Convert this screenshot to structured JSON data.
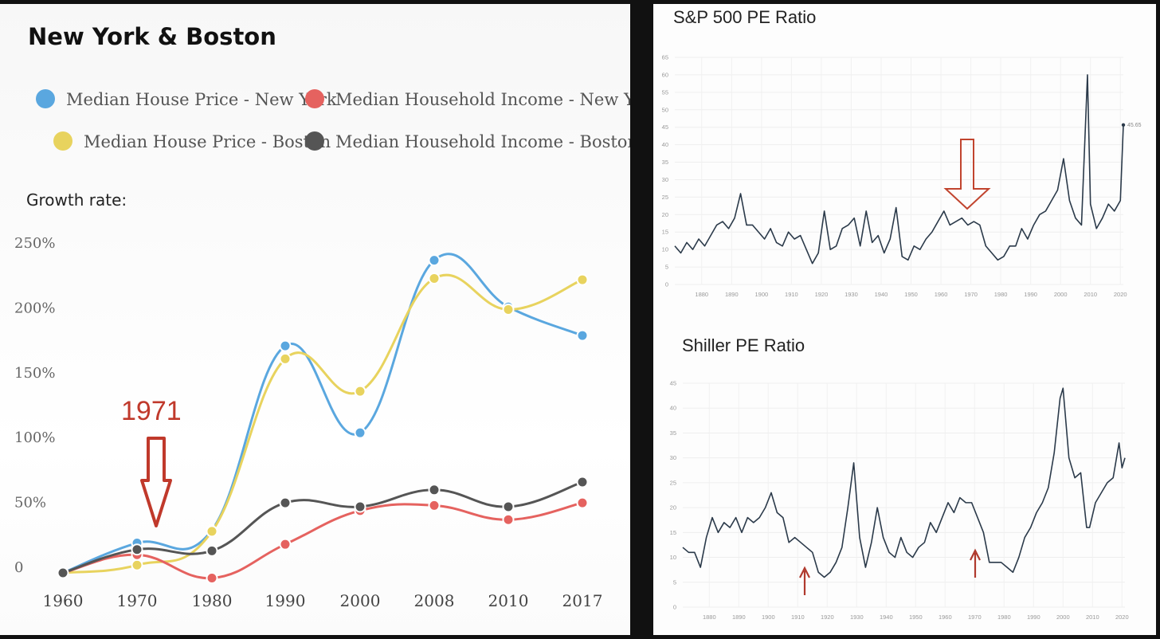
{
  "chart_data": [
    {
      "type": "line",
      "title": "New York & Boston",
      "ylabel": "Growth rate:",
      "categories": [
        "1960",
        "1970",
        "1980",
        "1990",
        "2000",
        "2008",
        "2010",
        "2017"
      ],
      "y_ticks": [
        "0",
        "50%",
        "100%",
        "150%",
        "200%",
        "250%"
      ],
      "ylim": [
        0,
        250
      ],
      "series": [
        {
          "name": "Median House Price - New York",
          "color": "#5aa7df",
          "values": [
            0,
            23,
            33,
            175,
            108,
            241,
            205,
            183
          ]
        },
        {
          "name": "Median Household Income - New York",
          "color": "#e5625f",
          "values": [
            0,
            14,
            -4,
            22,
            48,
            52,
            41,
            54
          ]
        },
        {
          "name": "Median House Price - Boston",
          "color": "#e8d35e",
          "values": [
            0,
            6,
            32,
            165,
            140,
            227,
            203,
            226
          ]
        },
        {
          "name": "Median Household Income - Boston",
          "color": "#555555",
          "values": [
            0,
            18,
            17,
            54,
            51,
            64,
            51,
            70
          ]
        }
      ],
      "annotation": {
        "label": "1971",
        "year": 1971
      }
    },
    {
      "type": "line",
      "title": "S&P 500 PE Ratio",
      "x_ticks": [
        "1880",
        "1890",
        "1900",
        "1910",
        "1920",
        "1930",
        "1940",
        "1950",
        "1960",
        "1970",
        "1980",
        "1990",
        "2000",
        "2010",
        "2020"
      ],
      "y_ticks": [
        "0",
        "5",
        "10",
        "15",
        "20",
        "25",
        "30",
        "35",
        "40",
        "45",
        "50",
        "55",
        "60",
        "65"
      ],
      "ylim": [
        0,
        65
      ],
      "xlim": [
        1871,
        2021
      ],
      "last_value_label": "45.65",
      "color": "#2b3a4a",
      "x": [
        1871,
        1873,
        1875,
        1877,
        1879,
        1881,
        1883,
        1885,
        1887,
        1889,
        1891,
        1893,
        1895,
        1897,
        1899,
        1901,
        1903,
        1905,
        1907,
        1909,
        1911,
        1913,
        1915,
        1917,
        1919,
        1921,
        1923,
        1925,
        1927,
        1929,
        1931,
        1933,
        1935,
        1937,
        1939,
        1941,
        1943,
        1945,
        1947,
        1949,
        1951,
        1953,
        1955,
        1957,
        1959,
        1961,
        1963,
        1965,
        1967,
        1969,
        1971,
        1973,
        1975,
        1977,
        1979,
        1981,
        1983,
        1985,
        1987,
        1989,
        1991,
        1993,
        1995,
        1997,
        1999,
        2001,
        2003,
        2005,
        2007,
        2009,
        2010,
        2012,
        2014,
        2016,
        2018,
        2020,
        2021
      ],
      "values": [
        11,
        9,
        12,
        10,
        13,
        11,
        14,
        17,
        18,
        16,
        19,
        26,
        17,
        17,
        15,
        13,
        16,
        12,
        11,
        15,
        13,
        14,
        10,
        6,
        9,
        21,
        10,
        11,
        16,
        17,
        19,
        11,
        21,
        12,
        14,
        9,
        13,
        22,
        8,
        7,
        11,
        10,
        13,
        15,
        18,
        21,
        17,
        18,
        19,
        17,
        18,
        17,
        11,
        9,
        7,
        8,
        11,
        11,
        16,
        13,
        17,
        20,
        21,
        24,
        27,
        36,
        24,
        19,
        17,
        60,
        23,
        16,
        19,
        23,
        21,
        24,
        45.65
      ]
    },
    {
      "type": "line",
      "title": "Shiller PE Ratio",
      "x_ticks": [
        "1880",
        "1890",
        "1900",
        "1910",
        "1920",
        "1930",
        "1940",
        "1950",
        "1960",
        "1970",
        "1980",
        "1990",
        "2000",
        "2010",
        "2020"
      ],
      "y_ticks": [
        "0",
        "5",
        "10",
        "15",
        "20",
        "25",
        "30",
        "35",
        "40",
        "45"
      ],
      "ylim": [
        0,
        45
      ],
      "xlim": [
        1871,
        2021
      ],
      "color": "#2b3a4a",
      "x": [
        1871,
        1873,
        1875,
        1877,
        1879,
        1881,
        1883,
        1885,
        1887,
        1889,
        1891,
        1893,
        1895,
        1897,
        1899,
        1901,
        1903,
        1905,
        1907,
        1909,
        1911,
        1913,
        1915,
        1917,
        1919,
        1921,
        1923,
        1925,
        1927,
        1929,
        1931,
        1933,
        1935,
        1937,
        1939,
        1941,
        1943,
        1945,
        1947,
        1949,
        1951,
        1953,
        1955,
        1957,
        1959,
        1961,
        1963,
        1965,
        1967,
        1969,
        1971,
        1973,
        1975,
        1977,
        1979,
        1981,
        1983,
        1985,
        1987,
        1989,
        1991,
        1993,
        1995,
        1997,
        1999,
        2000,
        2002,
        2004,
        2006,
        2008,
        2009,
        2011,
        2013,
        2015,
        2017,
        2019,
        2020,
        2021
      ],
      "values": [
        12,
        11,
        11,
        8,
        14,
        18,
        15,
        17,
        16,
        18,
        15,
        18,
        17,
        18,
        20,
        23,
        19,
        18,
        13,
        14,
        13,
        12,
        11,
        7,
        6,
        7,
        9,
        12,
        20,
        29,
        14,
        8,
        13,
        20,
        14,
        11,
        10,
        14,
        11,
        10,
        12,
        13,
        17,
        15,
        18,
        21,
        19,
        22,
        21,
        21,
        18,
        15,
        9,
        9,
        9,
        8,
        7,
        10,
        14,
        16,
        19,
        21,
        24,
        31,
        42,
        44,
        30,
        26,
        27,
        16,
        16,
        21,
        23,
        25,
        26,
        33,
        28,
        30
      ]
    }
  ]
}
